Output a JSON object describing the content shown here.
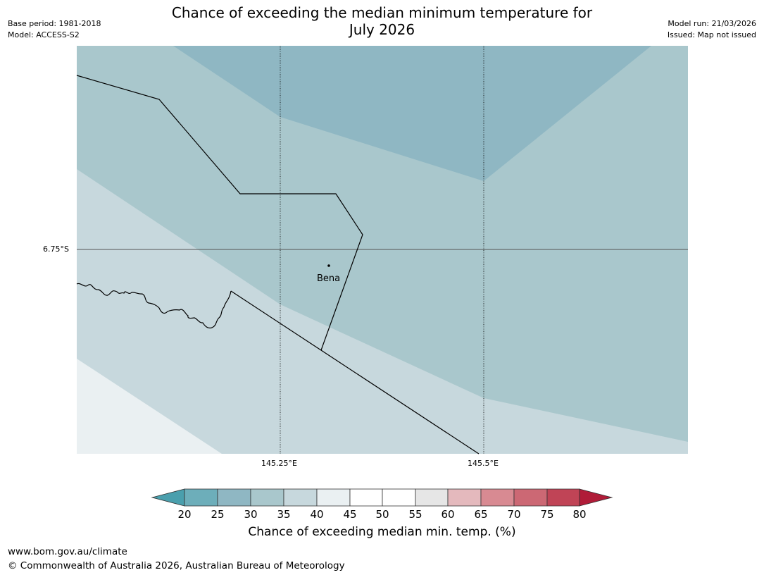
{
  "header": {
    "title_line1": "Chance of exceeding the median minimum temperature for",
    "title_line2": "July 2026",
    "base_period": "Base period: 1981-2018",
    "model": "Model: ACCESS-S2",
    "model_run": "Model run: 21/03/2026",
    "issued": "Issued: Map not issued"
  },
  "map": {
    "lat_label": "6.75°S",
    "lon_labels": [
      "145.25°E",
      "145.5°E"
    ],
    "place": "Bena"
  },
  "colorbar": {
    "title": "Chance of exceeding median min. temp. (%)",
    "ticks": [
      "20",
      "25",
      "30",
      "35",
      "40",
      "45",
      "50",
      "55",
      "60",
      "65",
      "70",
      "75",
      "80"
    ],
    "colors": [
      "#4a9fad",
      "#6daeba",
      "#8fb7c3",
      "#a9c7cc",
      "#c7d8dd",
      "#eaf0f2",
      "#ffffff",
      "#ffffff",
      "#e6e6e6",
      "#e4b9bd",
      "#d88a92",
      "#cc6874",
      "#c04456",
      "#b01c38"
    ]
  },
  "footer": {
    "url": "www.bom.gov.au/climate",
    "copyright": "© Commonwealth of Australia 2026, Australian Bureau of Meteorology"
  }
}
